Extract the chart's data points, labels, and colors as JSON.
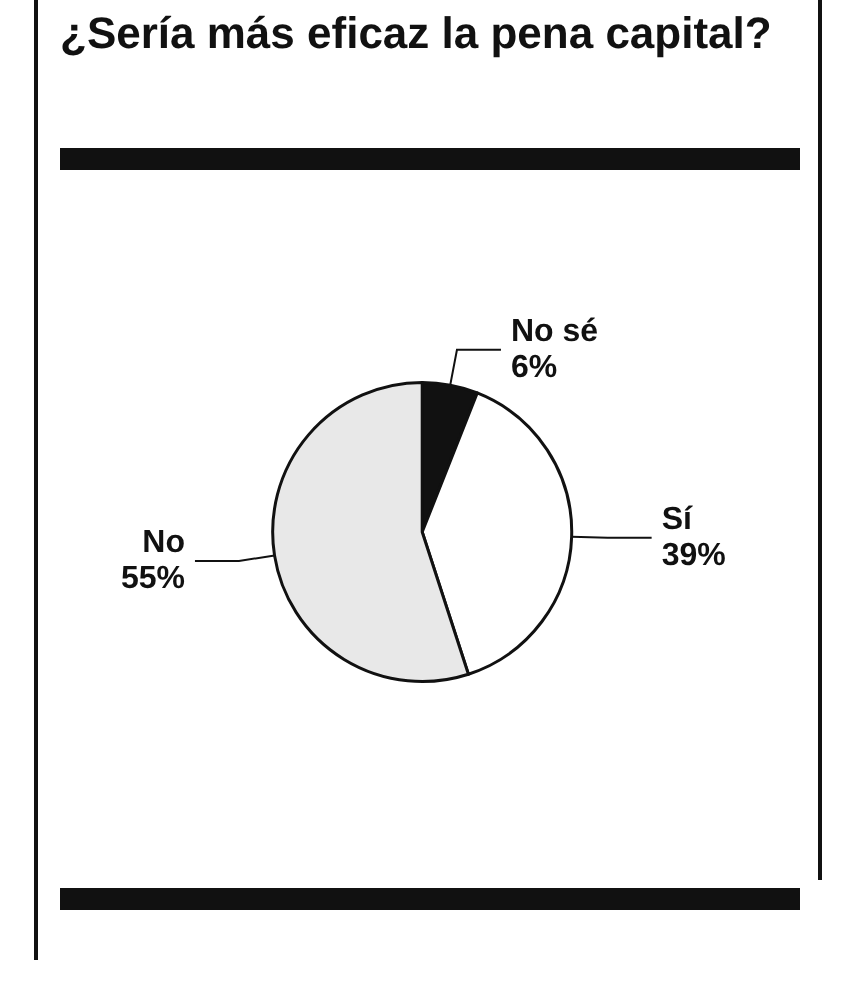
{
  "chart_data": {
    "type": "pie",
    "title": "¿Sería más eficaz la pena capital?",
    "categories": [
      "No sé",
      "Sí",
      "No"
    ],
    "values": [
      6,
      39,
      55
    ],
    "colors": [
      "#111111",
      "#ffffff",
      "#e8e8e8"
    ],
    "value_labels": [
      "6%",
      "39%",
      "55%"
    ],
    "legend": false
  }
}
